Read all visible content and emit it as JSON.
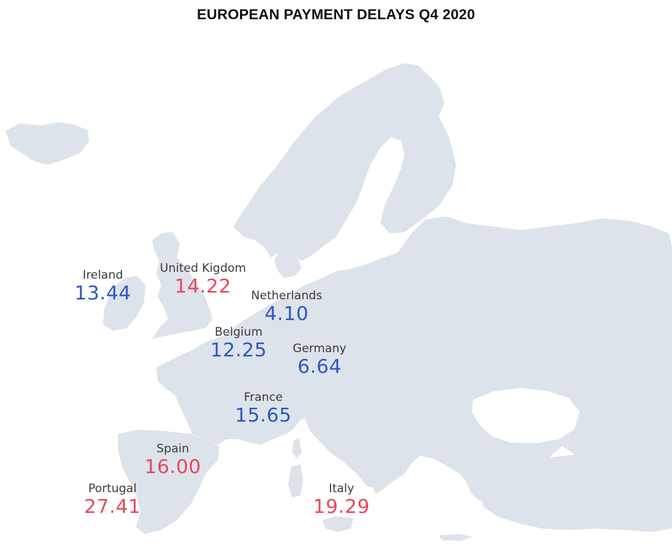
{
  "title": "EUROPEAN PAYMENT DELAYS Q4 2020",
  "colors": {
    "land": "#dde3ea",
    "below_value": "#2b57c4",
    "above_value": "#e8475a"
  },
  "countries": [
    {
      "id": "ireland",
      "name": "Ireland",
      "value": "13.44",
      "status": "blue"
    },
    {
      "id": "united-kingdom",
      "name": "United Kigdom",
      "value": "14.22",
      "status": "red"
    },
    {
      "id": "netherlands",
      "name": "Netherlands",
      "value": "4.10",
      "status": "blue"
    },
    {
      "id": "belgium",
      "name": "Belgium",
      "value": "12.25",
      "status": "blue"
    },
    {
      "id": "germany",
      "name": "Germany",
      "value": "6.64",
      "status": "blue"
    },
    {
      "id": "france",
      "name": "France",
      "value": "15.65",
      "status": "blue"
    },
    {
      "id": "spain",
      "name": "Spain",
      "value": "16.00",
      "status": "red"
    },
    {
      "id": "portugal",
      "name": "Portugal",
      "value": "27.41",
      "status": "red"
    },
    {
      "id": "italy",
      "name": "Italy",
      "value": "19.29",
      "status": "red"
    }
  ]
}
